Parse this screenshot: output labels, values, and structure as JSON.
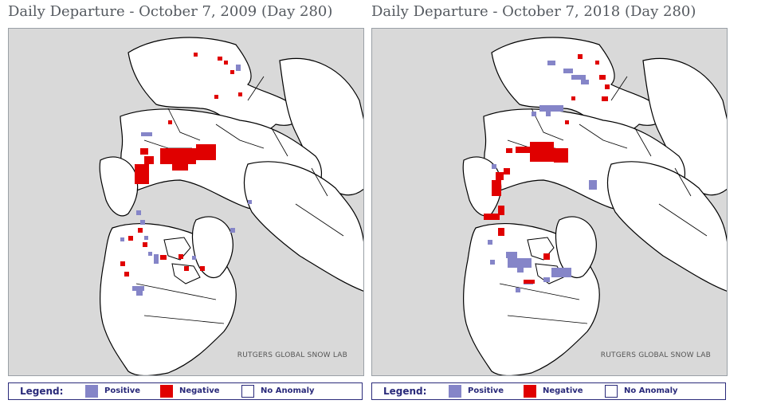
{
  "colors": {
    "positive": "#8585c8",
    "negative": "#e00000",
    "land": "#ffffff",
    "water": "#d9d9d9",
    "border": "#000000"
  },
  "panels": [
    {
      "title": "Daily Departure - October 7, 2009 (Day 280)",
      "credit": "RUTGERS GLOBAL SNOW LAB",
      "legend": {
        "title": "Legend:",
        "positive_label": "Positive",
        "negative_label": "Negative",
        "no_anomaly_label": "No Anomaly"
      }
    },
    {
      "title": "Daily Departure - October 7, 2018 (Day 280)",
      "credit": "RUTGERS GLOBAL SNOW LAB",
      "legend": {
        "title": "Legend:",
        "positive_label": "Positive",
        "negative_label": "Negative",
        "no_anomaly_label": "No Anomaly"
      }
    }
  ]
}
